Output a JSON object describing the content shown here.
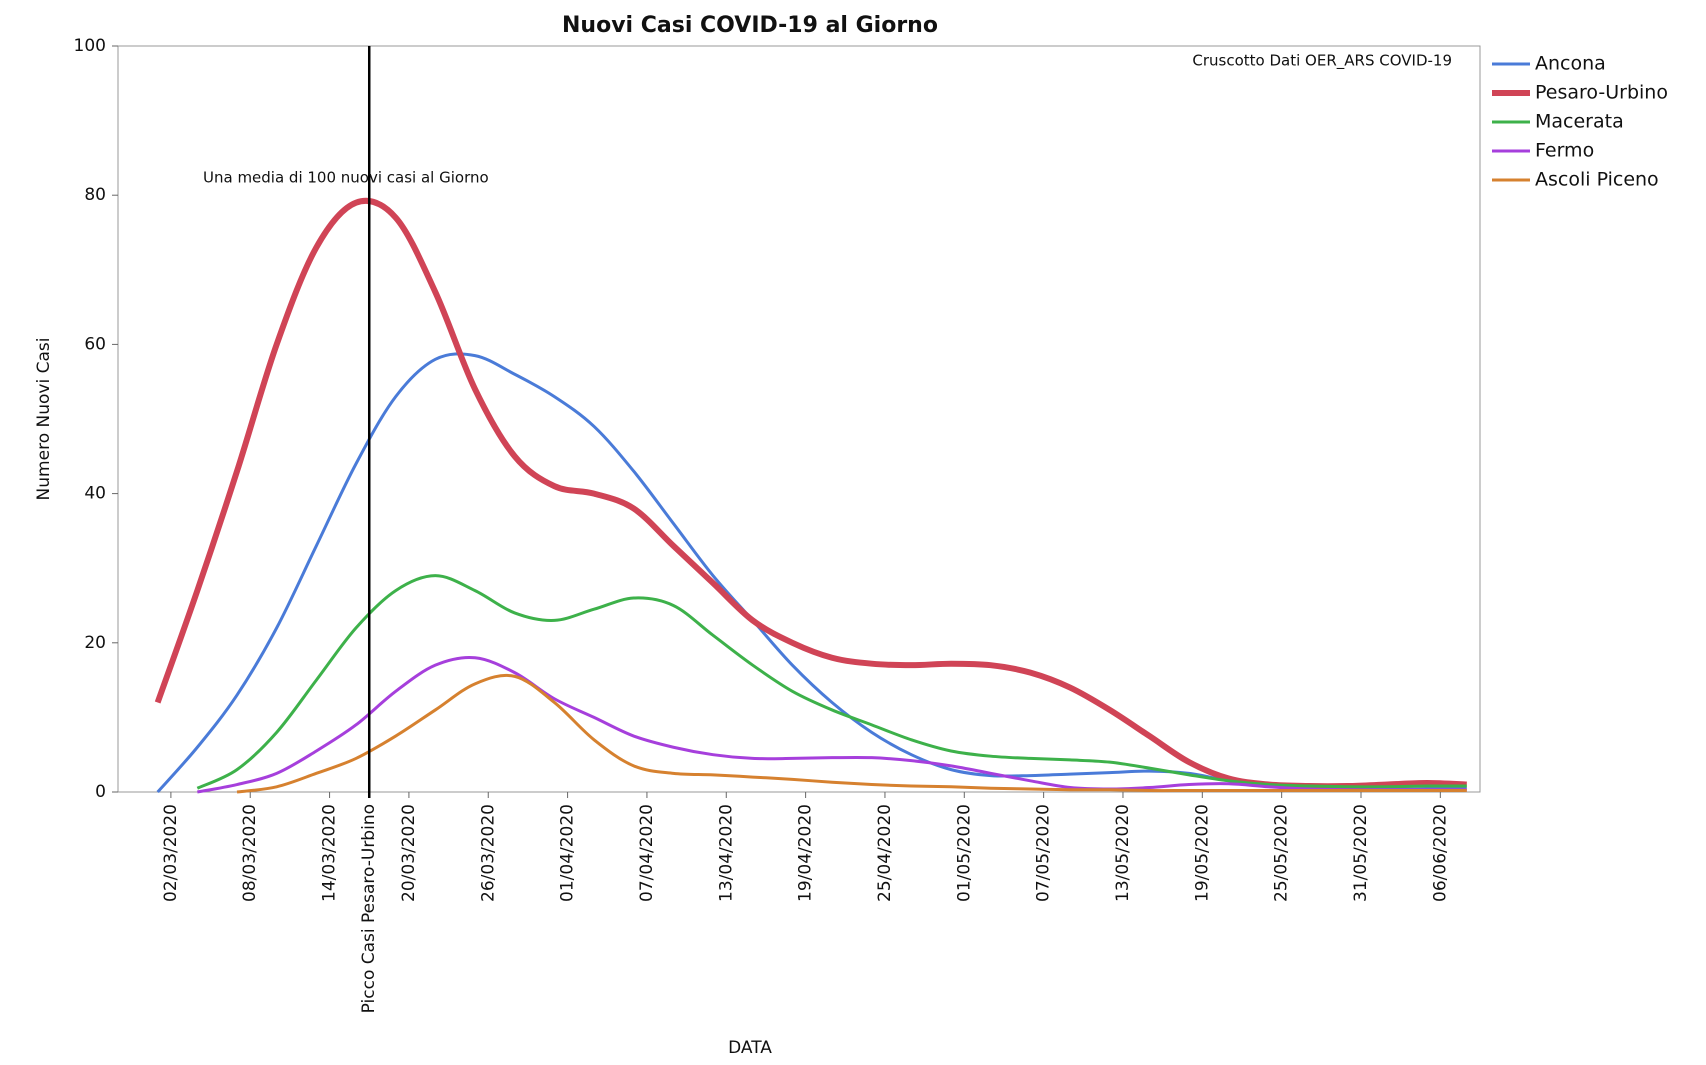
{
  "chart_data": {
    "type": "line",
    "title": "Nuovi Casi COVID-19 al Giorno",
    "x_label": "DATA",
    "y_label": "Numero Nuovi Casi",
    "x": [
      "01/03/2020",
      "04/03/2020",
      "07/03/2020",
      "10/03/2020",
      "13/03/2020",
      "16/03/2020",
      "19/03/2020",
      "22/03/2020",
      "25/03/2020",
      "28/03/2020",
      "31/03/2020",
      "03/04/2020",
      "06/04/2020",
      "09/04/2020",
      "12/04/2020",
      "15/04/2020",
      "18/04/2020",
      "21/04/2020",
      "24/04/2020",
      "27/04/2020",
      "30/04/2020",
      "03/05/2020",
      "06/05/2020",
      "09/05/2020",
      "12/05/2020",
      "15/05/2020",
      "18/05/2020",
      "21/05/2020",
      "24/05/2020",
      "27/05/2020",
      "30/05/2020",
      "02/06/2020",
      "05/06/2020",
      "08/06/2020"
    ],
    "series": [
      {
        "name": "Ancona",
        "color": "#4a7bd8",
        "line_width": 3,
        "values": [
          0,
          6,
          13,
          22,
          33,
          44,
          53,
          58,
          58.5,
          56,
          53,
          49,
          43,
          36,
          29,
          23,
          17,
          12,
          8,
          5,
          3,
          2.2,
          2.2,
          2.4,
          2.6,
          2.8,
          2.5,
          1.5,
          0.8,
          0.5,
          0.4,
          0.4,
          0.4,
          0.5
        ]
      },
      {
        "name": "Pesaro-Urbino",
        "color": "#d04456",
        "line_width": 6,
        "values": [
          12,
          27,
          43,
          60,
          73,
          79,
          77,
          67,
          54,
          45,
          41,
          40,
          38,
          33,
          28,
          23,
          20,
          18,
          17.2,
          17,
          17.2,
          17,
          16,
          14,
          11,
          7.5,
          4,
          1.8,
          1,
          0.8,
          0.8,
          1,
          1.2,
          1
        ]
      },
      {
        "name": "Macerata",
        "color": "#3db14a",
        "line_width": 3,
        "values": [
          null,
          0.5,
          3,
          8,
          15,
          22,
          27,
          29,
          27,
          24,
          23,
          24.5,
          26,
          25,
          21,
          17,
          13.5,
          11,
          9,
          7,
          5.5,
          4.8,
          4.5,
          4.3,
          4,
          3.2,
          2.3,
          1.5,
          1,
          0.8,
          0.7,
          0.7,
          0.8,
          0.8
        ]
      },
      {
        "name": "Fermo",
        "color": "#a63fdc",
        "line_width": 3,
        "values": [
          null,
          0,
          1,
          2.5,
          5.5,
          9,
          13.5,
          17,
          18,
          16,
          12.5,
          10,
          7.5,
          6,
          5,
          4.5,
          4.5,
          4.6,
          4.6,
          4.2,
          3.5,
          2.5,
          1.5,
          0.6,
          0.4,
          0.6,
          1,
          1.1,
          0.7,
          0.4,
          0.3,
          0.3,
          0.3,
          0.3
        ]
      },
      {
        "name": "Ascoli Piceno",
        "color": "#d6812f",
        "line_width": 3,
        "values": [
          null,
          null,
          0,
          0.7,
          2.5,
          4.5,
          7.5,
          11,
          14.5,
          15.5,
          12,
          7,
          3.5,
          2.5,
          2.3,
          2,
          1.7,
          1.3,
          1,
          0.8,
          0.7,
          0.5,
          0.4,
          0.3,
          0.3,
          0.2,
          0.2,
          0.2,
          0.2,
          0.2,
          0.2,
          0.2,
          0.2,
          0.2
        ]
      }
    ],
    "xlim": [
      "27/02/2020",
      "09/06/2020"
    ],
    "xticks": [
      "02/03/2020",
      "08/03/2020",
      "14/03/2020",
      "20/03/2020",
      "26/03/2020",
      "01/04/2020",
      "07/04/2020",
      "13/04/2020",
      "19/04/2020",
      "25/04/2020",
      "01/05/2020",
      "07/05/2020",
      "13/05/2020",
      "19/05/2020",
      "25/05/2020",
      "31/05/2020",
      "06/06/2020"
    ],
    "ylim": [
      0,
      100
    ],
    "yticks": [
      0,
      20,
      40,
      60,
      80,
      100
    ],
    "vline": {
      "x": "17/03/2020",
      "label": "Picco Casi Pesaro-Urbino",
      "color": "#000000"
    },
    "annotations": [
      "Una media di 100 nuovi casi al Giorno",
      "Cruscotto Dati OER_ARS COVID-19"
    ],
    "legend": "outside-right"
  }
}
